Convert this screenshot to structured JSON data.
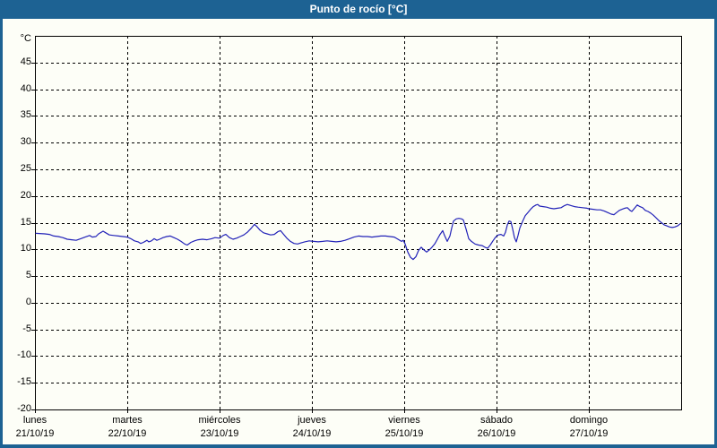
{
  "window": {
    "title": "Punto de rocío [°C]"
  },
  "colors": {
    "frame_blue": "#1d6293",
    "line_blue": "#2222b8",
    "background": "#fdfef7",
    "grid": "#000000",
    "title_text": "#ffffff"
  },
  "chart_data": {
    "type": "line",
    "title": "Punto de rocío [°C]",
    "ylabel_unit": "°C",
    "ylim": [
      -20,
      50
    ],
    "xlim_days": [
      0,
      7
    ],
    "grid": "dashed",
    "legend": "none",
    "y_tick_labels": [
      45,
      40,
      35,
      30,
      25,
      20,
      15,
      10,
      5,
      0,
      -5,
      -10,
      -15,
      -20
    ],
    "y_gridline_values": [
      45,
      40,
      35,
      30,
      25,
      20,
      15,
      10,
      5,
      0,
      -5,
      -10,
      -15
    ],
    "x_ticks": [
      {
        "day_name": "lunes",
        "date": "21/10/19",
        "day_index": 0
      },
      {
        "day_name": "martes",
        "date": "22/10/19",
        "day_index": 1
      },
      {
        "day_name": "miércoles",
        "date": "23/10/19",
        "day_index": 2
      },
      {
        "day_name": "jueves",
        "date": "24/10/19",
        "day_index": 3
      },
      {
        "day_name": "viernes",
        "date": "25/10/19",
        "day_index": 4
      },
      {
        "day_name": "sábado",
        "date": "26/10/19",
        "day_index": 5
      },
      {
        "day_name": "domingo",
        "date": "27/10/19",
        "day_index": 6
      }
    ],
    "series": [
      {
        "name": "Punto de rocío",
        "color": "#2222b8",
        "points": [
          [
            0.01,
            13.0
          ],
          [
            0.107,
            12.9
          ],
          [
            0.155,
            12.8
          ],
          [
            0.204,
            12.5
          ],
          [
            0.252,
            12.4
          ],
          [
            0.301,
            12.2
          ],
          [
            0.35,
            11.9
          ],
          [
            0.398,
            11.8
          ],
          [
            0.447,
            11.7
          ],
          [
            0.495,
            12.0
          ],
          [
            0.544,
            12.3
          ],
          [
            0.592,
            12.6
          ],
          [
            0.621,
            12.3
          ],
          [
            0.66,
            12.4
          ],
          [
            0.689,
            12.9
          ],
          [
            0.738,
            13.4
          ],
          [
            0.767,
            13.1
          ],
          [
            0.806,
            12.7
          ],
          [
            0.854,
            12.6
          ],
          [
            0.903,
            12.5
          ],
          [
            0.951,
            12.4
          ],
          [
            1.0,
            12.3
          ],
          [
            1.039,
            12.0
          ],
          [
            1.078,
            11.6
          ],
          [
            1.117,
            11.4
          ],
          [
            1.146,
            11.1
          ],
          [
            1.175,
            11.3
          ],
          [
            1.214,
            11.7
          ],
          [
            1.233,
            11.4
          ],
          [
            1.262,
            11.6
          ],
          [
            1.291,
            12.0
          ],
          [
            1.32,
            11.7
          ],
          [
            1.35,
            11.9
          ],
          [
            1.388,
            12.2
          ],
          [
            1.427,
            12.4
          ],
          [
            1.466,
            12.5
          ],
          [
            1.505,
            12.2
          ],
          [
            1.544,
            11.9
          ],
          [
            1.583,
            11.5
          ],
          [
            1.621,
            11.0
          ],
          [
            1.65,
            10.8
          ],
          [
            1.689,
            11.3
          ],
          [
            1.728,
            11.6
          ],
          [
            1.767,
            11.8
          ],
          [
            1.816,
            11.9
          ],
          [
            1.864,
            11.8
          ],
          [
            1.913,
            12.0
          ],
          [
            1.951,
            12.2
          ],
          [
            2.0,
            12.1
          ],
          [
            2.039,
            12.6
          ],
          [
            2.068,
            12.8
          ],
          [
            2.107,
            12.2
          ],
          [
            2.146,
            11.9
          ],
          [
            2.184,
            12.1
          ],
          [
            2.223,
            12.4
          ],
          [
            2.262,
            12.7
          ],
          [
            2.301,
            13.2
          ],
          [
            2.34,
            13.9
          ],
          [
            2.379,
            14.7
          ],
          [
            2.408,
            14.2
          ],
          [
            2.437,
            13.6
          ],
          [
            2.476,
            13.1
          ],
          [
            2.515,
            12.9
          ],
          [
            2.553,
            12.7
          ],
          [
            2.592,
            12.8
          ],
          [
            2.631,
            13.3
          ],
          [
            2.66,
            13.5
          ],
          [
            2.689,
            12.9
          ],
          [
            2.728,
            12.1
          ],
          [
            2.767,
            11.5
          ],
          [
            2.806,
            11.1
          ],
          [
            2.845,
            11.0
          ],
          [
            2.883,
            11.2
          ],
          [
            2.922,
            11.4
          ],
          [
            2.971,
            11.6
          ],
          [
            3.019,
            11.5
          ],
          [
            3.068,
            11.4
          ],
          [
            3.117,
            11.5
          ],
          [
            3.165,
            11.6
          ],
          [
            3.214,
            11.5
          ],
          [
            3.262,
            11.4
          ],
          [
            3.311,
            11.5
          ],
          [
            3.359,
            11.7
          ],
          [
            3.408,
            12.0
          ],
          [
            3.456,
            12.3
          ],
          [
            3.505,
            12.5
          ],
          [
            3.553,
            12.4
          ],
          [
            3.602,
            12.4
          ],
          [
            3.65,
            12.3
          ],
          [
            3.699,
            12.4
          ],
          [
            3.748,
            12.5
          ],
          [
            3.796,
            12.5
          ],
          [
            3.845,
            12.4
          ],
          [
            3.893,
            12.3
          ],
          [
            3.932,
            11.9
          ],
          [
            3.971,
            11.5
          ],
          [
            3.99,
            11.7
          ],
          [
            4.01,
            11.0
          ],
          [
            4.039,
            9.5
          ],
          [
            4.068,
            8.5
          ],
          [
            4.097,
            8.1
          ],
          [
            4.126,
            8.6
          ],
          [
            4.155,
            9.8
          ],
          [
            4.184,
            10.4
          ],
          [
            4.214,
            9.9
          ],
          [
            4.243,
            9.5
          ],
          [
            4.272,
            9.9
          ],
          [
            4.301,
            10.4
          ],
          [
            4.33,
            11.0
          ],
          [
            4.359,
            11.9
          ],
          [
            4.388,
            12.8
          ],
          [
            4.417,
            13.5
          ],
          [
            4.437,
            12.6
          ],
          [
            4.466,
            11.5
          ],
          [
            4.495,
            12.5
          ],
          [
            4.515,
            14.0
          ],
          [
            4.534,
            15.3
          ],
          [
            4.563,
            15.7
          ],
          [
            4.592,
            15.8
          ],
          [
            4.621,
            15.7
          ],
          [
            4.641,
            15.5
          ],
          [
            4.67,
            13.8
          ],
          [
            4.699,
            12.0
          ],
          [
            4.728,
            11.5
          ],
          [
            4.767,
            11.0
          ],
          [
            4.806,
            10.8
          ],
          [
            4.845,
            10.7
          ],
          [
            4.874,
            10.4
          ],
          [
            4.903,
            10.2
          ],
          [
            4.932,
            10.8
          ],
          [
            4.961,
            11.6
          ],
          [
            4.99,
            12.3
          ],
          [
            5.019,
            12.7
          ],
          [
            5.049,
            12.8
          ],
          [
            5.078,
            12.5
          ],
          [
            5.097,
            13.2
          ],
          [
            5.117,
            14.6
          ],
          [
            5.136,
            15.3
          ],
          [
            5.155,
            15.2
          ],
          [
            5.175,
            13.8
          ],
          [
            5.194,
            12.2
          ],
          [
            5.214,
            11.4
          ],
          [
            5.233,
            12.6
          ],
          [
            5.252,
            14.0
          ],
          [
            5.282,
            15.2
          ],
          [
            5.311,
            16.3
          ],
          [
            5.34,
            16.9
          ],
          [
            5.369,
            17.5
          ],
          [
            5.398,
            18.0
          ],
          [
            5.427,
            18.3
          ],
          [
            5.447,
            18.4
          ],
          [
            5.466,
            18.1
          ],
          [
            5.505,
            18.0
          ],
          [
            5.544,
            17.9
          ],
          [
            5.583,
            17.7
          ],
          [
            5.621,
            17.6
          ],
          [
            5.66,
            17.7
          ],
          [
            5.699,
            17.8
          ],
          [
            5.738,
            18.2
          ],
          [
            5.767,
            18.4
          ],
          [
            5.806,
            18.2
          ],
          [
            5.845,
            18.0
          ],
          [
            5.883,
            17.9
          ],
          [
            5.932,
            17.8
          ],
          [
            5.981,
            17.7
          ],
          [
            6.0,
            17.6
          ],
          [
            6.049,
            17.5
          ],
          [
            6.087,
            17.4
          ],
          [
            6.126,
            17.4
          ],
          [
            6.165,
            17.2
          ],
          [
            6.204,
            16.9
          ],
          [
            6.243,
            16.6
          ],
          [
            6.272,
            16.5
          ],
          [
            6.301,
            16.9
          ],
          [
            6.33,
            17.3
          ],
          [
            6.359,
            17.5
          ],
          [
            6.388,
            17.7
          ],
          [
            6.417,
            17.8
          ],
          [
            6.447,
            17.3
          ],
          [
            6.466,
            17.1
          ],
          [
            6.495,
            17.7
          ],
          [
            6.524,
            18.3
          ],
          [
            6.553,
            18.0
          ],
          [
            6.583,
            17.8
          ],
          [
            6.612,
            17.3
          ],
          [
            6.641,
            17.1
          ],
          [
            6.67,
            16.8
          ],
          [
            6.699,
            16.4
          ],
          [
            6.728,
            15.9
          ],
          [
            6.757,
            15.4
          ],
          [
            6.786,
            15.0
          ],
          [
            6.816,
            14.6
          ],
          [
            6.845,
            14.4
          ],
          [
            6.874,
            14.2
          ],
          [
            6.903,
            14.1
          ],
          [
            6.932,
            14.2
          ],
          [
            6.961,
            14.4
          ],
          [
            6.99,
            14.8
          ]
        ]
      }
    ]
  }
}
